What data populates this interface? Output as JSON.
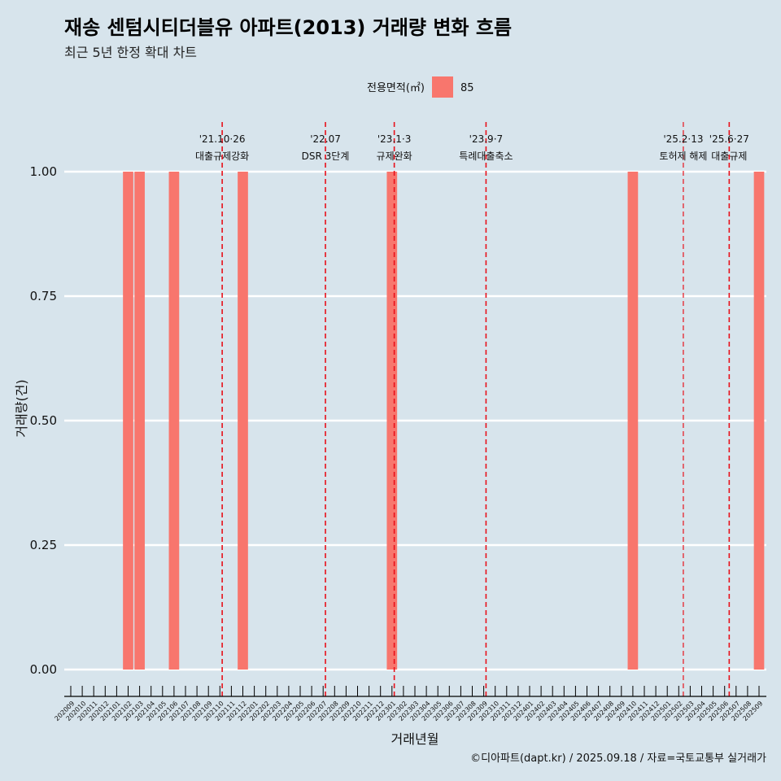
{
  "chart_data": {
    "type": "bar",
    "title": "재송 센텀시티더블유 아파트(2013) 거래량 변화 흐름",
    "subtitle": "최근 5년 한정 확대 차트",
    "xlabel": "거래년월",
    "ylabel": "거래량(건)",
    "ylim": [
      0,
      1
    ],
    "yticks": [
      "0.00",
      "0.25",
      "0.50",
      "0.75",
      "1.00"
    ],
    "ytick_values": [
      0,
      0.25,
      0.5,
      0.75,
      1
    ],
    "legend": {
      "title": "전용면적(㎡)",
      "entries": [
        "85"
      ],
      "color": "#f8766d"
    },
    "categories": [
      "202009",
      "202010",
      "202011",
      "202012",
      "202101",
      "202102",
      "202103",
      "202104",
      "202105",
      "202106",
      "202107",
      "202108",
      "202109",
      "202110",
      "202111",
      "202112",
      "202201",
      "202202",
      "202203",
      "202204",
      "202205",
      "202206",
      "202207",
      "202208",
      "202209",
      "202210",
      "202211",
      "202212",
      "202301",
      "202302",
      "202303",
      "202304",
      "202305",
      "202306",
      "202307",
      "202308",
      "202309",
      "202310",
      "202311",
      "202312",
      "202401",
      "202402",
      "202403",
      "202404",
      "202405",
      "202406",
      "202407",
      "202408",
      "202409",
      "202410",
      "202411",
      "202412",
      "202501",
      "202502",
      "202503",
      "202504",
      "202505",
      "202506",
      "202507",
      "202508",
      "202509"
    ],
    "series": [
      {
        "name": "85",
        "values": [
          0,
          0,
          0,
          0,
          0,
          1,
          1,
          0,
          0,
          1,
          0,
          0,
          0,
          0,
          0,
          1,
          0,
          0,
          0,
          0,
          0,
          0,
          0,
          0,
          0,
          0,
          0,
          0,
          1,
          0,
          0,
          0,
          0,
          0,
          0,
          0,
          0,
          0,
          0,
          0,
          0,
          0,
          0,
          0,
          0,
          0,
          0,
          0,
          0,
          1,
          0,
          0,
          0,
          0,
          0,
          0,
          0,
          0,
          0,
          0,
          1
        ]
      }
    ],
    "events": [
      {
        "pos": 13.2,
        "date": "'21.10·26",
        "label": "대출규제강화",
        "small": false
      },
      {
        "pos": 22.2,
        "date": "'22.07",
        "label": "DSR 3단계",
        "small": false
      },
      {
        "pos": 28.2,
        "date": "'23.1·3",
        "label": "규제완화",
        "small": false
      },
      {
        "pos": 36.2,
        "date": "'23.9·7",
        "label": "특례대출축소",
        "small": false
      },
      {
        "pos": 53.4,
        "date": "'25.2·13",
        "label": "토허제 해제",
        "small": true
      },
      {
        "pos": 57.4,
        "date": "'25.6·27",
        "label": "대출규제",
        "small": false
      }
    ],
    "caption": "©디아파트(dapt.kr) / 2025.09.18 / 자료=국토교통부 실거래가"
  }
}
